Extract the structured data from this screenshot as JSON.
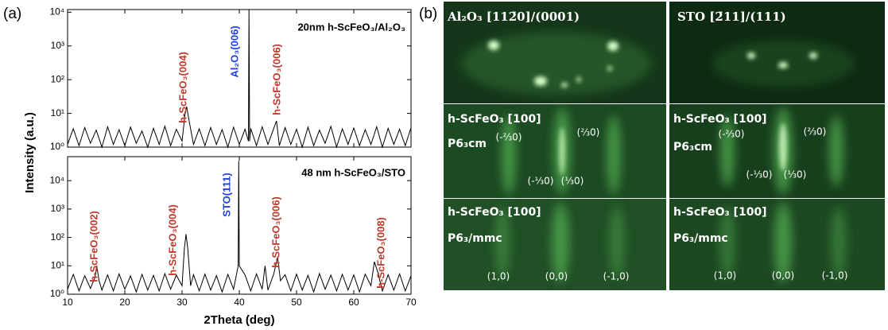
{
  "figure": {
    "panel_labels": [
      "(a)",
      "(b)"
    ],
    "x_label": "2Theta (deg)",
    "y_label": "Intensity (a.u.)"
  },
  "chart_data": [
    {
      "type": "line",
      "title": "20nm h-ScFeO₃/Al₂O₃",
      "log_y": true,
      "color": "#000000",
      "show_xtick_labels": false,
      "xlim": [
        10,
        70
      ],
      "xticks": [
        10,
        20,
        30,
        40,
        50,
        60,
        70
      ],
      "ylim": [
        1,
        12000
      ],
      "yticks": [
        {
          "value": 1,
          "label": "10⁰"
        },
        {
          "value": 10,
          "label": "10¹"
        },
        {
          "value": 100,
          "label": "10²"
        },
        {
          "value": 1000,
          "label": "10³"
        },
        {
          "value": 10000,
          "label": "10⁴"
        }
      ],
      "annotations": [
        {
          "text": "h-ScFeO₃(004)",
          "color": "#c0392b"
        },
        {
          "text": "Al₂O₃(006)",
          "color": "#1f3fe0"
        },
        {
          "text": "h-ScFeO₃(006)",
          "color": "#c0392b"
        }
      ],
      "x": [
        10,
        11,
        12,
        13,
        14,
        15,
        16,
        17,
        18,
        19,
        20,
        21,
        22,
        23,
        24,
        25,
        26,
        27,
        28,
        29,
        30,
        30.5,
        30.8,
        31.1,
        32,
        33,
        34,
        35,
        36,
        37,
        38,
        39,
        40,
        41,
        41.6,
        41.7,
        41.8,
        42,
        43,
        44,
        45,
        46,
        46.5,
        47,
        48,
        49,
        50,
        51,
        52,
        53,
        54,
        55,
        56,
        57,
        58,
        59,
        60,
        61,
        62,
        63,
        64,
        65,
        66,
        67,
        68,
        69,
        70
      ],
      "values": [
        1.2,
        3.5,
        1.1,
        3.8,
        1.3,
        3.2,
        1.0,
        4,
        1.2,
        3.3,
        1.1,
        3.9,
        1.3,
        3.0,
        1.0,
        3.6,
        1.2,
        4.2,
        1.1,
        3.4,
        1.5,
        9,
        16,
        8,
        1.2,
        3.5,
        1.1,
        3.8,
        1.2,
        3.3,
        1.0,
        3.9,
        1.2,
        3.4,
        1.5,
        12000,
        1.5,
        3.6,
        1.1,
        4.0,
        1.2,
        3.5,
        6,
        1.1,
        3.8,
        1.2,
        3.4,
        1.0,
        3.9,
        1.1,
        3.2,
        1.3,
        4.1,
        1.0,
        3.5,
        1.2,
        3.7,
        1.1,
        3.3,
        1.2,
        4.0,
        1.0,
        3.6,
        1.2,
        3.4,
        1.1,
        3.8
      ]
    },
    {
      "type": "line",
      "title": "48 nm h-ScFeO₃/STO",
      "log_y": true,
      "color": "#000000",
      "show_xtick_labels": true,
      "xlim": [
        10,
        70
      ],
      "xticks": [
        10,
        20,
        30,
        40,
        50,
        60,
        70
      ],
      "ylim": [
        1,
        70000
      ],
      "yticks": [
        {
          "value": 1,
          "label": "10⁰"
        },
        {
          "value": 10,
          "label": "10¹"
        },
        {
          "value": 100,
          "label": "10²"
        },
        {
          "value": 1000,
          "label": "10³"
        },
        {
          "value": 10000,
          "label": "10⁴"
        }
      ],
      "annotations": [
        {
          "text": "h-ScFeO₃(002)",
          "color": "#c0392b"
        },
        {
          "text": "h-ScFeO₃(004)",
          "color": "#c0392b"
        },
        {
          "text": "STO(111)",
          "color": "#1f3fe0"
        },
        {
          "text": "h-ScFeO₃(006)",
          "color": "#c0392b"
        },
        {
          "text": "h-ScFeO₃(008)",
          "color": "#c0392b"
        }
      ],
      "x": [
        10,
        11,
        12,
        13,
        14,
        14.8,
        15.1,
        15.5,
        16,
        17,
        18,
        19,
        20,
        21,
        22,
        23,
        24,
        25,
        26,
        27,
        28,
        29,
        30,
        30.4,
        30.7,
        31.0,
        31.5,
        32,
        33,
        34,
        35,
        36,
        37,
        38,
        39,
        39.8,
        39.9,
        40.0,
        41,
        42,
        43,
        44,
        44.5,
        45,
        46,
        46.7,
        47.2,
        48,
        49,
        50,
        51,
        52,
        53,
        54,
        55,
        56,
        57,
        58,
        59,
        60,
        61,
        62,
        63,
        63.6,
        64.2,
        65,
        66,
        67,
        68,
        69,
        70
      ],
      "values": [
        1.5,
        5,
        1.3,
        4.5,
        1.6,
        4,
        10,
        3,
        1.4,
        4.8,
        1.3,
        5.2,
        1.5,
        4.4,
        1.2,
        5.0,
        1.4,
        4.6,
        1.3,
        5.3,
        1.5,
        4.7,
        2,
        40,
        130,
        40,
        2,
        4.9,
        1.3,
        5.1,
        1.4,
        4.5,
        1.2,
        5.0,
        1.5,
        10,
        50000,
        10,
        4.8,
        1.3,
        5.2,
        1.5,
        10,
        1.4,
        5,
        20,
        3,
        4.9,
        1.3,
        5.1,
        1.4,
        4.6,
        1.2,
        5.3,
        1.5,
        4.7,
        1.3,
        5.0,
        1.4,
        4.8,
        1.2,
        5.1,
        2,
        14,
        6,
        1.3,
        4.9,
        1.4,
        5.2,
        1.3,
        4.5
      ]
    }
  ],
  "rheed": {
    "panels": [
      {
        "lines": [
          "Al₂O₃ [112̄0]/(0001)"
        ],
        "labels": []
      },
      {
        "lines": [
          "STO [2̄11]/(111)"
        ],
        "labels": []
      },
      {
        "lines": [
          "h-ScFeO₃ [100]",
          "P6₃cm"
        ],
        "labels": [
          "(-⅔0)",
          "(⅔0)",
          "(-⅓0)",
          "(⅓0)"
        ]
      },
      {
        "lines": [
          "h-ScFeO₃ [100]",
          "P6₃cm"
        ],
        "labels": [
          "(-⅔0)",
          "(⅔0)",
          "(-⅓0)",
          "(⅓0)"
        ]
      },
      {
        "lines": [
          "h-ScFeO₃ [100]",
          "P6₃/mmc"
        ],
        "labels": [
          "(1,0)",
          "(0,0)",
          "(-1,0)"
        ]
      },
      {
        "lines": [
          "h-ScFeO₃ [100]",
          "P6₃/mmc"
        ],
        "labels": [
          "(1,0)",
          "(0,0)",
          "(-1,0)"
        ]
      }
    ]
  }
}
